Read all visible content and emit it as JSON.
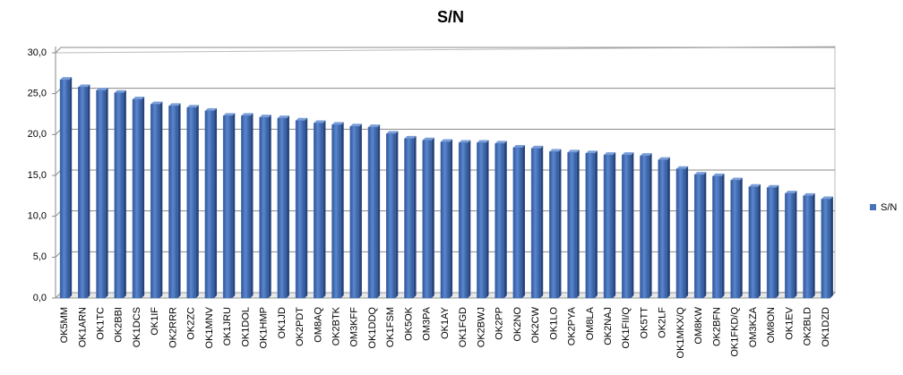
{
  "chart_data": {
    "type": "bar",
    "title": "S/N",
    "categories": [
      "OK5MM",
      "OK1ARN",
      "OK1TC",
      "OK2BBI",
      "OK1DCS",
      "OK1IF",
      "OK2RRR",
      "OK2ZC",
      "OK1MNV",
      "OK1JRU",
      "OK1DOL",
      "OK1HMP",
      "OK1JD",
      "OK2PDT",
      "OM8AQ",
      "OK2BTK",
      "OM3KFF",
      "OK1DDQ",
      "OK1FSM",
      "OK5OK",
      "OM3PA",
      "OK1AY",
      "OK1FGD",
      "OK2BWJ",
      "OK2PP",
      "OK2NO",
      "OK2CW",
      "OK1LO",
      "OK2PYA",
      "OM8LA",
      "OK2NAJ",
      "OK1FII/Q",
      "OK5TT",
      "OK2LF",
      "OK1MKX/Q",
      "OM8KW",
      "OK2BFN",
      "OK1FKD/Q",
      "OM3KZA",
      "OM8ON",
      "OK1EV",
      "OK2BLD",
      "OK1DZD"
    ],
    "series": [
      {
        "name": "S/N",
        "color": "#4a72b8",
        "values": [
          26.7,
          25.8,
          25.4,
          25.1,
          24.3,
          23.7,
          23.5,
          23.3,
          22.9,
          22.3,
          22.3,
          22.1,
          22.0,
          21.7,
          21.4,
          21.2,
          21.0,
          20.9,
          20.1,
          19.5,
          19.3,
          19.1,
          19.0,
          19.0,
          18.9,
          18.4,
          18.3,
          17.9,
          17.8,
          17.7,
          17.5,
          17.5,
          17.4,
          16.9,
          15.8,
          15.1,
          14.9,
          14.4,
          13.6,
          13.5,
          12.8,
          12.5,
          12.1
        ]
      }
    ],
    "ylim": [
      0,
      30
    ],
    "yticks": [
      {
        "value": 0,
        "label": "0,0"
      },
      {
        "value": 5,
        "label": "5,0"
      },
      {
        "value": 10,
        "label": "10,0"
      },
      {
        "value": 15,
        "label": "15,0"
      },
      {
        "value": 20,
        "label": "20,0"
      },
      {
        "value": 25,
        "label": "25,0"
      },
      {
        "value": 30,
        "label": "30,0"
      }
    ],
    "grid": true,
    "legend": "right"
  }
}
